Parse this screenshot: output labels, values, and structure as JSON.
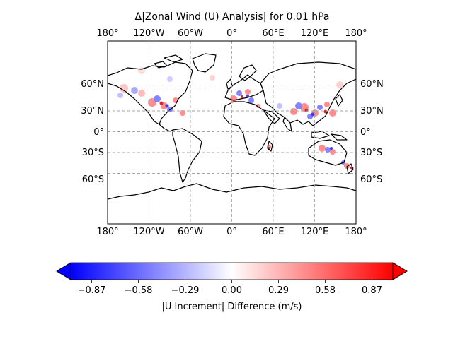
{
  "title": "Δ|Zonal Wind (U) Analysis| for 0.01 hPa",
  "map": {
    "lon_labels": [
      "180°",
      "120°W",
      "60°W",
      "0°",
      "60°E",
      "120°E",
      "180°"
    ],
    "lat_labels": [
      "60°N",
      "30°N",
      "0°",
      "30°S",
      "60°S"
    ]
  },
  "colorbar": {
    "colormap": "bwr",
    "low_color": "#0000ff",
    "mid_color": "#ffffff",
    "high_color": "#ff0000",
    "range": [
      -1.0,
      1.0
    ],
    "ticks": [
      "−0.87",
      "−0.58",
      "−0.29",
      "0.00",
      "0.29",
      "0.58",
      "0.87"
    ],
    "label": "|U Increment| Difference (m/s)",
    "extend": "both"
  }
}
